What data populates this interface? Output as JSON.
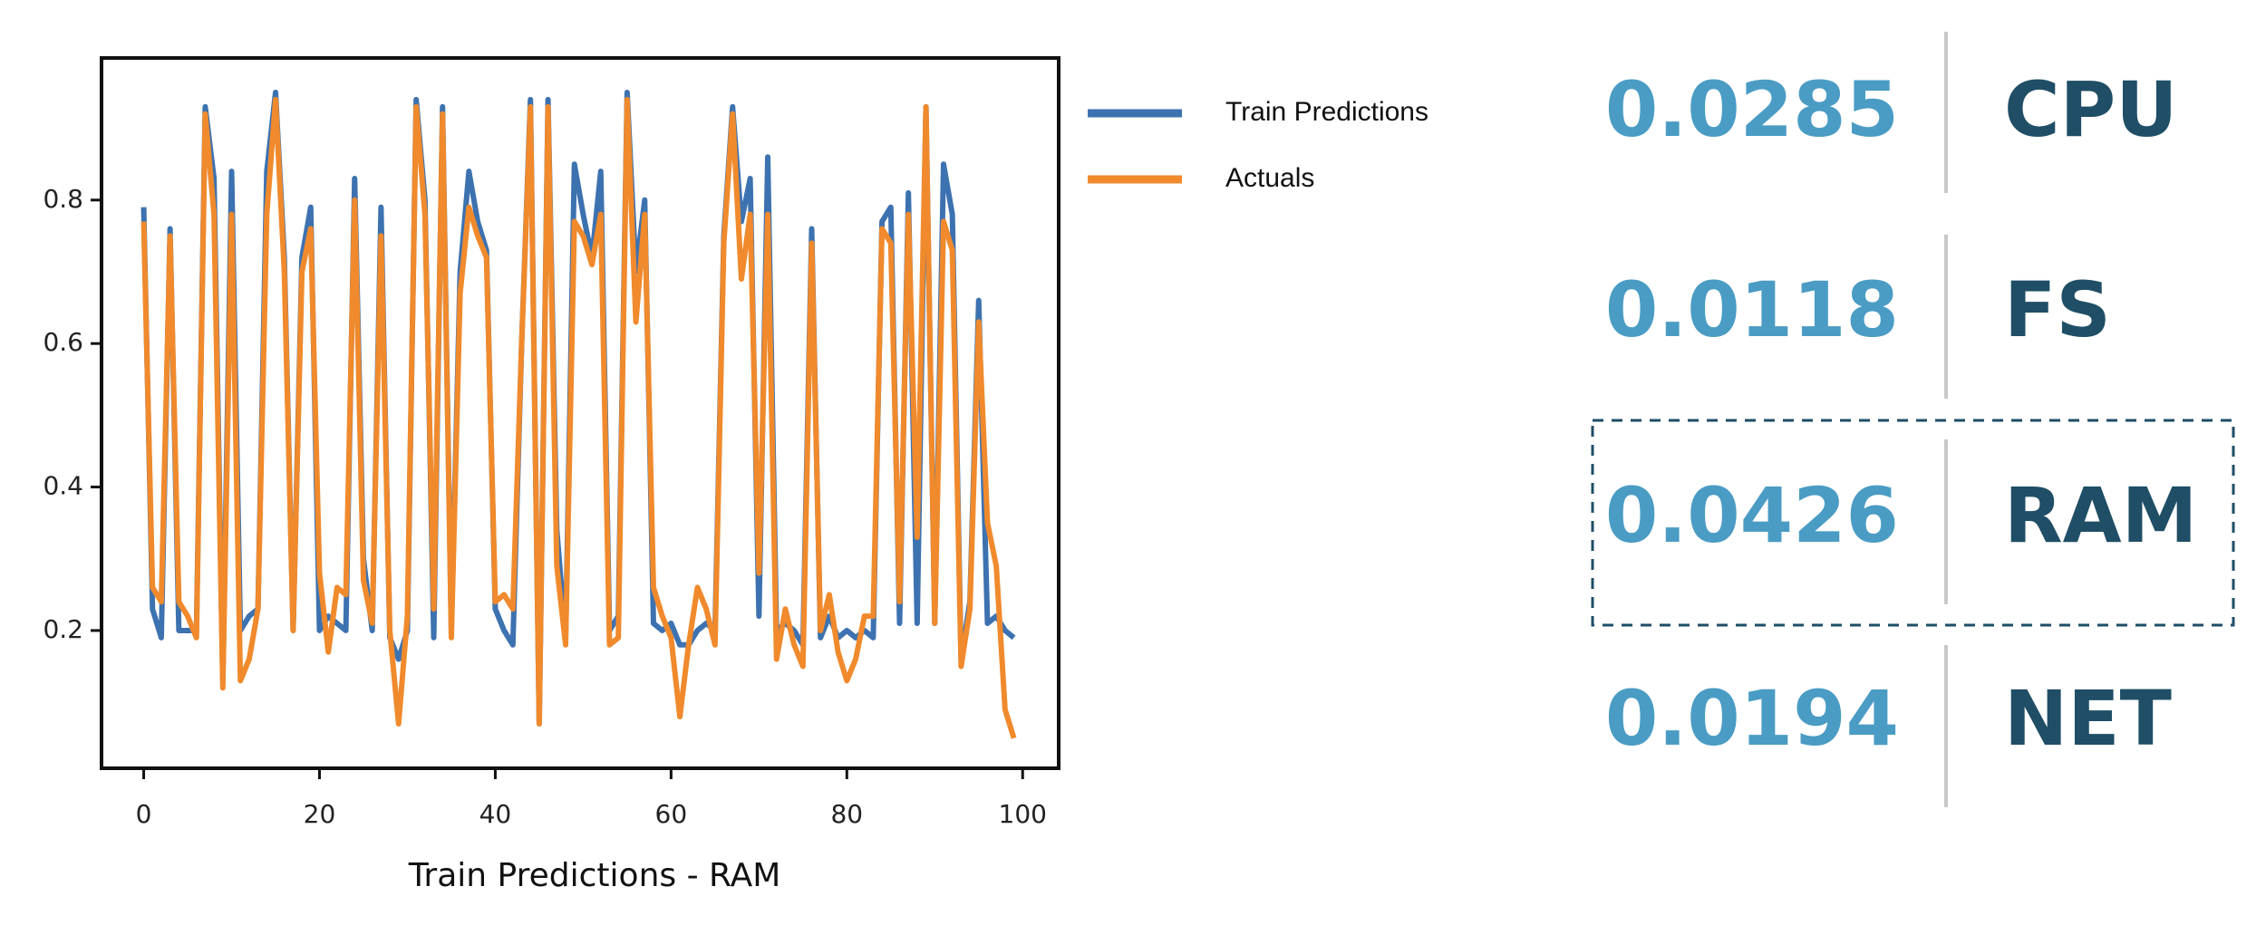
{
  "chart_data": {
    "type": "line",
    "xlabel": "Train Predictions - RAM",
    "x": [
      0,
      1,
      2,
      3,
      4,
      5,
      6,
      7,
      8,
      9,
      10,
      11,
      12,
      13,
      14,
      15,
      16,
      17,
      18,
      19,
      20,
      21,
      22,
      23,
      24,
      25,
      26,
      27,
      28,
      29,
      30,
      31,
      32,
      33,
      34,
      35,
      36,
      37,
      38,
      39,
      40,
      41,
      42,
      43,
      44,
      45,
      46,
      47,
      48,
      49,
      50,
      51,
      52,
      53,
      54,
      55,
      56,
      57,
      58,
      59,
      60,
      61,
      62,
      63,
      64,
      65,
      66,
      67,
      68,
      69,
      70,
      71,
      72,
      73,
      74,
      75,
      76,
      77,
      78,
      79,
      80,
      81,
      82,
      83,
      84,
      85,
      86,
      87,
      88,
      89,
      90,
      91,
      92,
      93,
      94,
      95,
      96,
      97,
      98,
      99
    ],
    "series": [
      {
        "name": "Train Predictions",
        "color": "#3d72b0",
        "values": [
          0.79,
          0.23,
          0.19,
          0.76,
          0.2,
          0.2,
          0.2,
          0.93,
          0.83,
          0.13,
          0.84,
          0.2,
          0.22,
          0.23,
          0.84,
          0.95,
          0.72,
          0.2,
          0.72,
          0.79,
          0.2,
          0.22,
          0.21,
          0.2,
          0.83,
          0.3,
          0.2,
          0.79,
          0.19,
          0.16,
          0.2,
          0.94,
          0.8,
          0.19,
          0.93,
          0.2,
          0.7,
          0.84,
          0.77,
          0.73,
          0.23,
          0.2,
          0.18,
          0.6,
          0.94,
          0.07,
          0.94,
          0.34,
          0.19,
          0.85,
          0.78,
          0.72,
          0.84,
          0.2,
          0.22,
          0.95,
          0.7,
          0.8,
          0.21,
          0.2,
          0.21,
          0.18,
          0.18,
          0.2,
          0.21,
          0.2,
          0.75,
          0.93,
          0.77,
          0.83,
          0.22,
          0.86,
          0.2,
          0.21,
          0.2,
          0.18,
          0.76,
          0.19,
          0.22,
          0.19,
          0.2,
          0.19,
          0.2,
          0.19,
          0.77,
          0.79,
          0.21,
          0.81,
          0.21,
          0.93,
          0.21,
          0.85,
          0.78,
          0.16,
          0.24,
          0.66,
          0.21,
          0.22,
          0.2,
          0.19
        ]
      },
      {
        "name": "Actuals",
        "color": "#f08a2c",
        "values": [
          0.77,
          0.26,
          0.24,
          0.75,
          0.24,
          0.22,
          0.19,
          0.92,
          0.78,
          0.12,
          0.78,
          0.13,
          0.16,
          0.23,
          0.78,
          0.94,
          0.7,
          0.2,
          0.7,
          0.76,
          0.28,
          0.17,
          0.26,
          0.25,
          0.8,
          0.27,
          0.21,
          0.75,
          0.2,
          0.07,
          0.22,
          0.93,
          0.78,
          0.23,
          0.92,
          0.19,
          0.67,
          0.79,
          0.75,
          0.72,
          0.24,
          0.25,
          0.23,
          0.6,
          0.93,
          0.07,
          0.93,
          0.29,
          0.18,
          0.77,
          0.75,
          0.71,
          0.78,
          0.18,
          0.19,
          0.94,
          0.63,
          0.78,
          0.26,
          0.22,
          0.19,
          0.08,
          0.18,
          0.26,
          0.23,
          0.18,
          0.74,
          0.92,
          0.69,
          0.78,
          0.28,
          0.78,
          0.16,
          0.23,
          0.18,
          0.15,
          0.74,
          0.2,
          0.25,
          0.17,
          0.13,
          0.16,
          0.22,
          0.22,
          0.76,
          0.74,
          0.24,
          0.78,
          0.33,
          0.93,
          0.21,
          0.77,
          0.73,
          0.15,
          0.23,
          0.63,
          0.35,
          0.29,
          0.09,
          0.05
        ]
      }
    ],
    "xlim": [
      -4.8,
      104.1
    ],
    "xticks": [
      0,
      20,
      40,
      60,
      80,
      100
    ],
    "ylim": [
      0.008,
      0.998
    ],
    "yticks": [
      0.2,
      0.4,
      0.6,
      0.8
    ],
    "grid": false,
    "legend": "outside-right"
  },
  "metrics": [
    {
      "value": 0.0285,
      "label": "CPU"
    },
    {
      "value": 0.0118,
      "label": "FS"
    },
    {
      "value": 0.0426,
      "label": "RAM"
    },
    {
      "value": 0.0194,
      "label": "NET"
    }
  ]
}
